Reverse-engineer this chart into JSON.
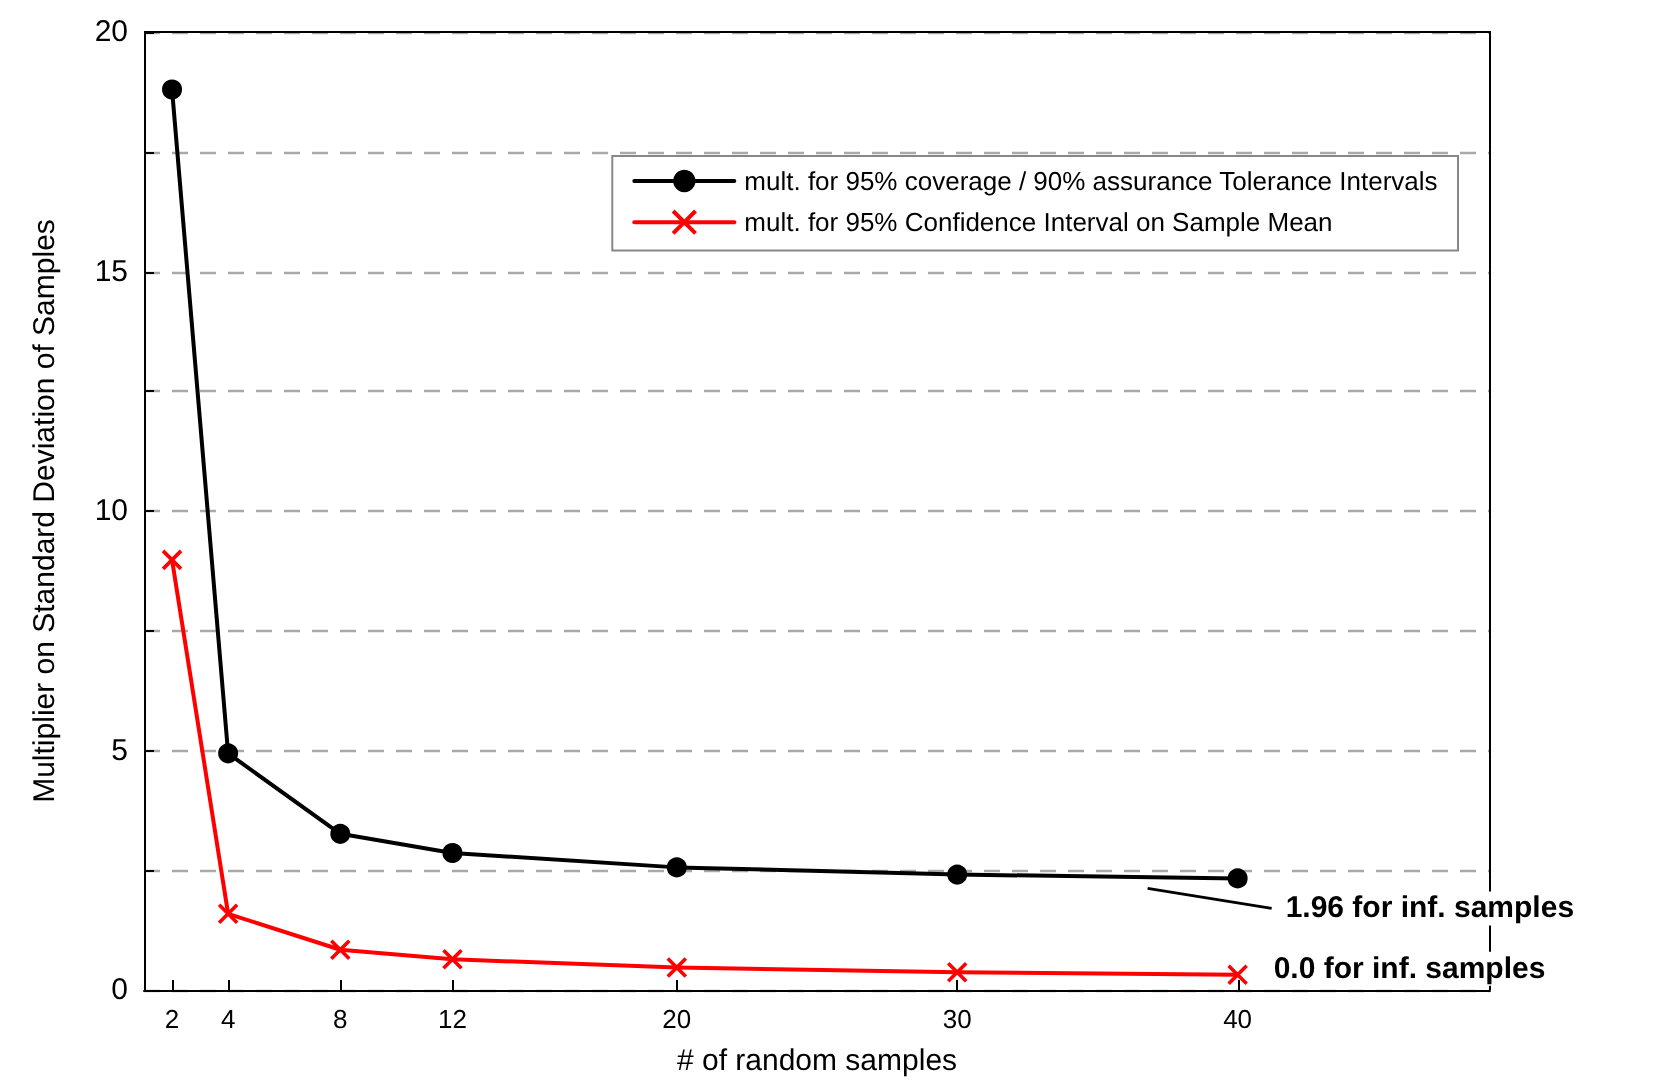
{
  "chart_data": {
    "type": "line",
    "xlabel": "# of random samples",
    "ylabel": "Multiplier on Standard Deviation of Samples",
    "x": [
      2,
      4,
      8,
      12,
      20,
      30,
      40
    ],
    "series": [
      {
        "name": "mult. for 95% coverage / 90% assurance Tolerance Intervals",
        "color": "#000000",
        "marker": "circle",
        "values": [
          18.8,
          4.94,
          3.26,
          2.86,
          2.56,
          2.41,
          2.33
        ]
      },
      {
        "name": "mult. for 95% Confidence Interval on Sample Mean",
        "color": "#ff0000",
        "marker": "cross",
        "values": [
          8.98,
          1.59,
          0.84,
          0.64,
          0.47,
          0.37,
          0.32
        ]
      }
    ],
    "xlim": [
      1,
      49
    ],
    "xticks": [
      2,
      4,
      8,
      12,
      20,
      30,
      40
    ],
    "ylim": [
      0,
      20
    ],
    "yticks": [
      0,
      {
        "value": 2.5,
        "label": null
      },
      5,
      {
        "value": 7.5,
        "label": null
      },
      10,
      {
        "value": 12.5,
        "label": null
      },
      15,
      {
        "value": 17.5,
        "label": null
      },
      20
    ],
    "grid": "y",
    "legend": "top right",
    "line_style": "solid",
    "annotations": [
      {
        "text": "1.96 for inf. samples",
        "x": 40,
        "y": 2.33
      },
      {
        "text": "0.0 for inf. samples",
        "x": 40,
        "y": 0.32
      }
    ]
  }
}
